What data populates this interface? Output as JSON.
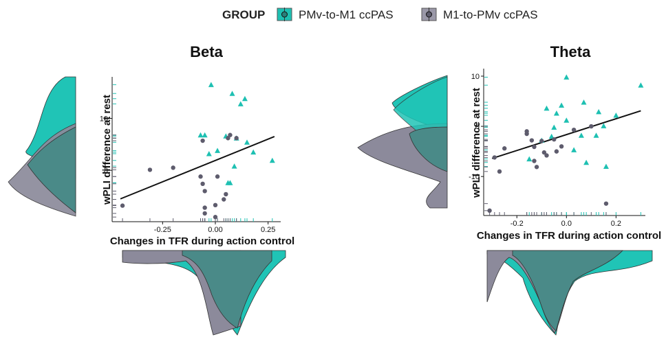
{
  "legend": {
    "title": "GROUP",
    "items": [
      {
        "label": "PMv-to-M1 ccPAS",
        "color": "#1ec0b2"
      },
      {
        "label": "M1-to-PMv ccPAS",
        "color": "#5e5c6d"
      }
    ]
  },
  "colors": {
    "teal": "#1ec0b2",
    "teal_fill": "#20c4b6",
    "gray": "#5e5c6d",
    "gray_fill": "#8c8a9b",
    "overlap_fill": "#4a8a88",
    "line": "#111111"
  },
  "chart_data": [
    {
      "type": "scatter",
      "title": "Beta",
      "xlabel": "Changes in TFR during action control",
      "ylabel": "wPLI difference at rest",
      "xlim": [
        -0.45,
        0.3
      ],
      "ylim": [
        -9.5,
        18
      ],
      "xticks": [
        -0.25,
        0.0,
        0.25
      ],
      "xtick_labels": [
        "-0.25",
        "0.00",
        "0.25"
      ],
      "yticks": [
        0,
        10
      ],
      "ytick_labels": [
        "0",
        "10"
      ],
      "regression": {
        "x": [
          -0.45,
          0.28
        ],
        "y": [
          -5.5,
          6.5
        ]
      },
      "series": [
        {
          "name": "PMv-to-M1 ccPAS",
          "marker": "triangle",
          "points": [
            [
              -0.07,
              6.8
            ],
            [
              -0.05,
              6.8
            ],
            [
              -0.03,
              3.2
            ],
            [
              -0.02,
              16.5
            ],
            [
              0.01,
              3.8
            ],
            [
              0.05,
              6.6
            ],
            [
              0.06,
              -2.4
            ],
            [
              0.07,
              -2.4
            ],
            [
              0.08,
              14.8
            ],
            [
              0.09,
              0.8
            ],
            [
              0.1,
              6.2
            ],
            [
              0.12,
              12.8
            ],
            [
              0.14,
              13.8
            ],
            [
              0.15,
              5.4
            ],
            [
              0.18,
              3.5
            ],
            [
              0.27,
              1.9
            ]
          ]
        },
        {
          "name": "M1-to-PMv ccPAS",
          "marker": "circle",
          "points": [
            [
              -0.44,
              -6.8
            ],
            [
              -0.31,
              0.1
            ],
            [
              -0.2,
              0.5
            ],
            [
              -0.07,
              -1.2
            ],
            [
              -0.06,
              5.7
            ],
            [
              -0.06,
              -2.6
            ],
            [
              -0.05,
              -4.0
            ],
            [
              -0.05,
              -7.2
            ],
            [
              -0.05,
              -8.3
            ],
            [
              0.0,
              -6.7
            ],
            [
              0.0,
              -9.0
            ],
            [
              0.01,
              -1.2
            ],
            [
              0.04,
              -5.6
            ],
            [
              0.05,
              -4.6
            ],
            [
              0.06,
              6.2
            ],
            [
              0.07,
              6.8
            ],
            [
              0.1,
              6.2
            ]
          ]
        }
      ]
    },
    {
      "type": "scatter",
      "title": "Theta",
      "xlabel": "Changes in TFR during action control",
      "ylabel": "wPLI difference at rest",
      "xlim": [
        -0.32,
        0.31
      ],
      "ylim": [
        -17.5,
        11.5
      ],
      "xticks": [
        -0.2,
        0.0,
        0.2
      ],
      "xtick_labels": [
        "-0.2",
        "0.0",
        "0.2"
      ],
      "yticks": [
        -10,
        0,
        10
      ],
      "ytick_labels": [
        "-10",
        "0",
        "10"
      ],
      "regression": {
        "x": [
          -0.3,
          0.3
        ],
        "y": [
          -6.4,
          3.1
        ]
      },
      "series": [
        {
          "name": "PMv-to-M1 ccPAS",
          "marker": "triangle",
          "points": [
            [
              -0.15,
              -6.5
            ],
            [
              -0.1,
              -2.8
            ],
            [
              -0.08,
              3.6
            ],
            [
              -0.06,
              -2.0
            ],
            [
              -0.05,
              -0.2
            ],
            [
              -0.04,
              2.6
            ],
            [
              -0.02,
              4.2
            ],
            [
              0.0,
              9.8
            ],
            [
              0.0,
              1.2
            ],
            [
              0.03,
              -4.7
            ],
            [
              0.06,
              -1.8
            ],
            [
              0.07,
              4.8
            ],
            [
              0.08,
              -7.2
            ],
            [
              0.12,
              -1.8
            ],
            [
              0.13,
              2.9
            ],
            [
              0.15,
              0.1
            ],
            [
              0.16,
              -8.0
            ],
            [
              0.2,
              2.2
            ],
            [
              0.3,
              8.2
            ]
          ]
        },
        {
          "name": "M1-to-PMv ccPAS",
          "marker": "circle",
          "points": [
            [
              -0.31,
              -16.8
            ],
            [
              -0.29,
              -6.2
            ],
            [
              -0.27,
              -9.0
            ],
            [
              -0.25,
              -4.4
            ],
            [
              -0.16,
              -1.0
            ],
            [
              -0.16,
              -1.5
            ],
            [
              -0.14,
              -2.8
            ],
            [
              -0.13,
              -4.1
            ],
            [
              -0.13,
              -6.9
            ],
            [
              -0.12,
              -8.1
            ],
            [
              -0.1,
              -2.9
            ],
            [
              -0.09,
              -5.2
            ],
            [
              -0.08,
              -5.8
            ],
            [
              -0.05,
              -2.6
            ],
            [
              -0.04,
              -5.0
            ],
            [
              -0.02,
              -4.0
            ],
            [
              0.03,
              -0.7
            ],
            [
              0.1,
              -0.0
            ],
            [
              0.16,
              -15.4
            ]
          ]
        }
      ]
    }
  ]
}
